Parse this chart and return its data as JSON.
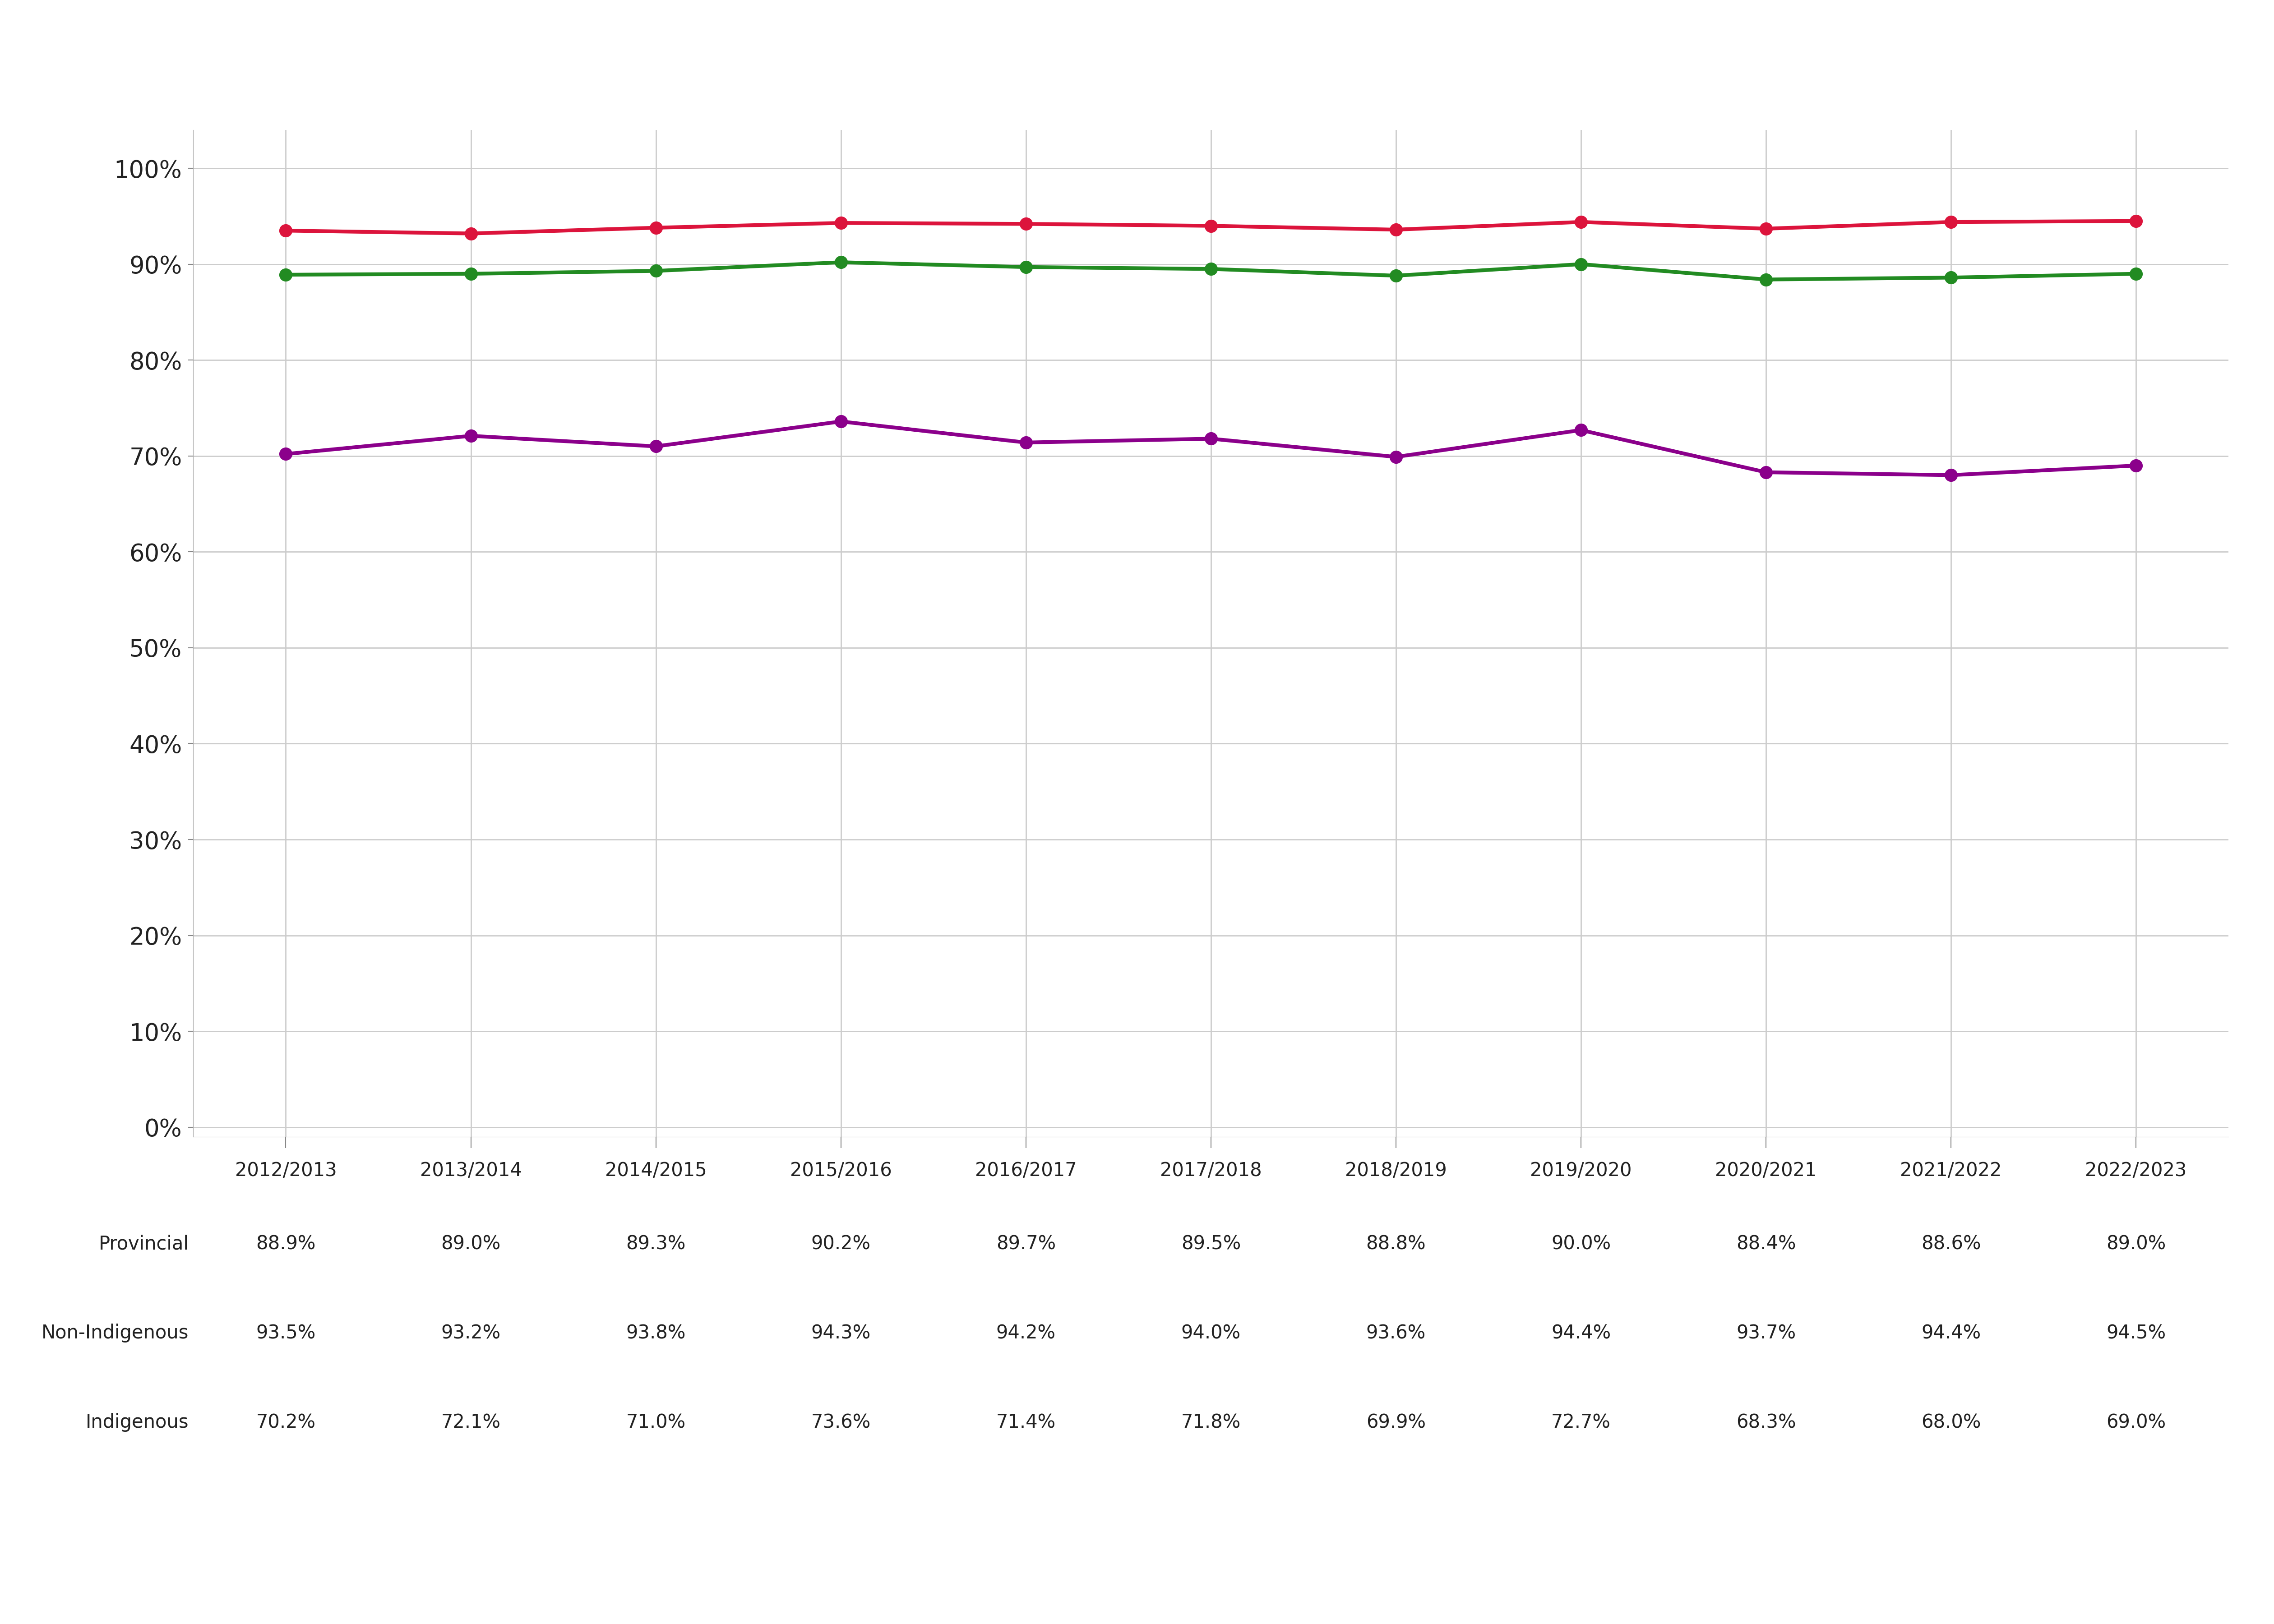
{
  "years": [
    "2012/2013",
    "2013/2014",
    "2014/2015",
    "2015/2016",
    "2016/2017",
    "2017/2018",
    "2018/2019",
    "2019/2020",
    "2020/2021",
    "2021/2022",
    "2022/2023"
  ],
  "provincial": [
    88.9,
    89.0,
    89.3,
    90.2,
    89.7,
    89.5,
    88.8,
    90.0,
    88.4,
    88.6,
    89.0
  ],
  "non_indigenous": [
    93.5,
    93.2,
    93.8,
    94.3,
    94.2,
    94.0,
    93.6,
    94.4,
    93.7,
    94.4,
    94.5
  ],
  "indigenous": [
    70.2,
    72.1,
    71.0,
    73.6,
    71.4,
    71.8,
    69.9,
    72.7,
    68.3,
    68.0,
    69.0
  ],
  "provincial_color": "#228B22",
  "non_indigenous_color": "#DC143C",
  "indigenous_color": "#8B008B",
  "background_color": "#FFFFFF",
  "grid_color": "#CCCCCC",
  "yticks": [
    0,
    10,
    20,
    30,
    40,
    50,
    60,
    70,
    80,
    90,
    100
  ],
  "ylim": [
    -1,
    104
  ],
  "line_width": 6,
  "marker_size": 20,
  "table_rows": [
    {
      "label": "Provincial",
      "values": [
        88.9,
        89.0,
        89.3,
        90.2,
        89.7,
        89.5,
        88.8,
        90.0,
        88.4,
        88.6,
        89.0
      ]
    },
    {
      "label": "Non-Indigenous",
      "values": [
        93.5,
        93.2,
        93.8,
        94.3,
        94.2,
        94.0,
        93.6,
        94.4,
        93.7,
        94.4,
        94.5
      ]
    },
    {
      "label": "Indigenous",
      "values": [
        70.2,
        72.1,
        71.0,
        73.6,
        71.4,
        71.8,
        69.9,
        72.7,
        68.3,
        68.0,
        69.0
      ]
    }
  ]
}
